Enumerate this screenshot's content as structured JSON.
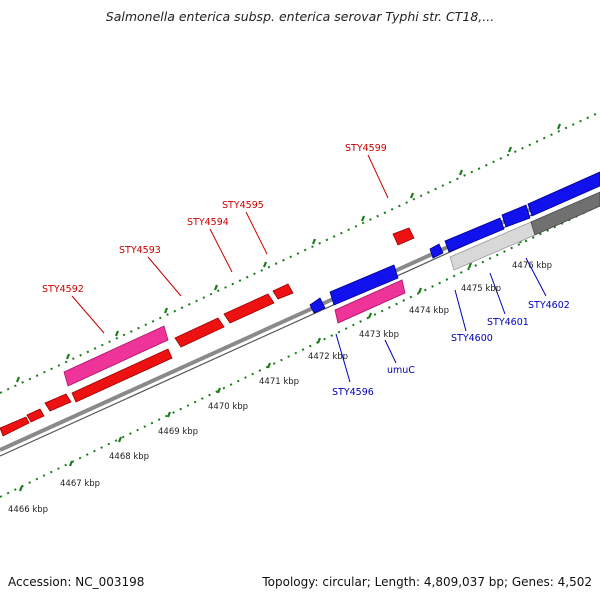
{
  "title": "Salmonella enterica subsp. enterica serovar Typhi str. CT18,...",
  "footer": {
    "accession": "Accession: NC_003198",
    "summary": "Topology: circular; Length: 4,809,037 bp; Genes: 4,502"
  },
  "colors": {
    "forward_cds": "#ee1111",
    "reverse_cds": "#1111ee",
    "rna": "#ee3399",
    "backbone": "#8f8f8f",
    "tick": "#1b7a1b",
    "forward_label": "#cc0000",
    "reverse_label": "#0000bb"
  },
  "ruler": {
    "ticks": [
      {
        "label": "4466 kbp"
      },
      {
        "label": "4467 kbp"
      },
      {
        "label": "4468 kbp"
      },
      {
        "label": "4469 kbp"
      },
      {
        "label": "4470 kbp"
      },
      {
        "label": "4471 kbp"
      },
      {
        "label": "4472 kbp"
      },
      {
        "label": "4473 kbp"
      },
      {
        "label": "4474 kbp"
      },
      {
        "label": "4475 kbp"
      },
      {
        "label": "4476 kbp"
      }
    ]
  },
  "forward_labels": [
    "STY4592",
    "STY4593",
    "STY4594",
    "STY4595",
    "STY4599"
  ],
  "reverse_labels": [
    "STY4596",
    "umuC",
    "STY4600",
    "STY4601",
    "STY4602"
  ]
}
